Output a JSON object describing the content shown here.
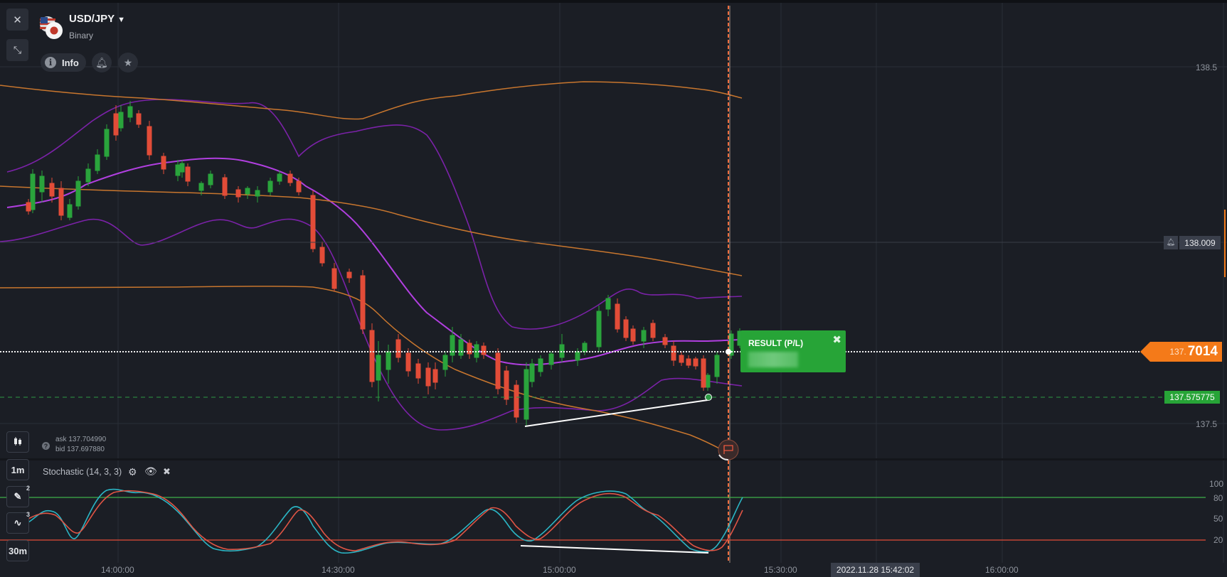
{
  "header": {
    "pair": "USD/JPY",
    "type": "Binary",
    "info_label": "Info"
  },
  "prices": {
    "level_high": "138.5",
    "level_low": "137.5",
    "alert_price": "138.009",
    "strike_price": "137.575775",
    "current_small": "137.",
    "current_big": "7014",
    "ask": "ask 137.704990",
    "bid": "bid 137.697880"
  },
  "result": {
    "title": "RESULT (P/L)"
  },
  "indicator": {
    "label": "Stochastic (14, 3, 3)",
    "levels": [
      "100",
      "80",
      "50",
      "20"
    ]
  },
  "timeframes": {
    "chart_period": "1m",
    "expiration": "30m",
    "drawings_count": "2",
    "indicators_count": "3"
  },
  "time_axis": [
    "14:00:00",
    "14:30:00",
    "15:00:00",
    "15:30:00",
    "16:00:00"
  ],
  "current_time": "2022.11.28 15:42:02",
  "colors": {
    "background": "#1b1e25",
    "up_candle": "#2aa43c",
    "down_candle": "#e24c38",
    "bollinger_purple": "#7b22a8",
    "sma_purple": "#b13fe0",
    "orange_ma": "#c8762e",
    "current_price": "#f47a19",
    "result_green": "#27a437",
    "stoch_k": "#2bb5c4",
    "stoch_d": "#e05545"
  }
}
